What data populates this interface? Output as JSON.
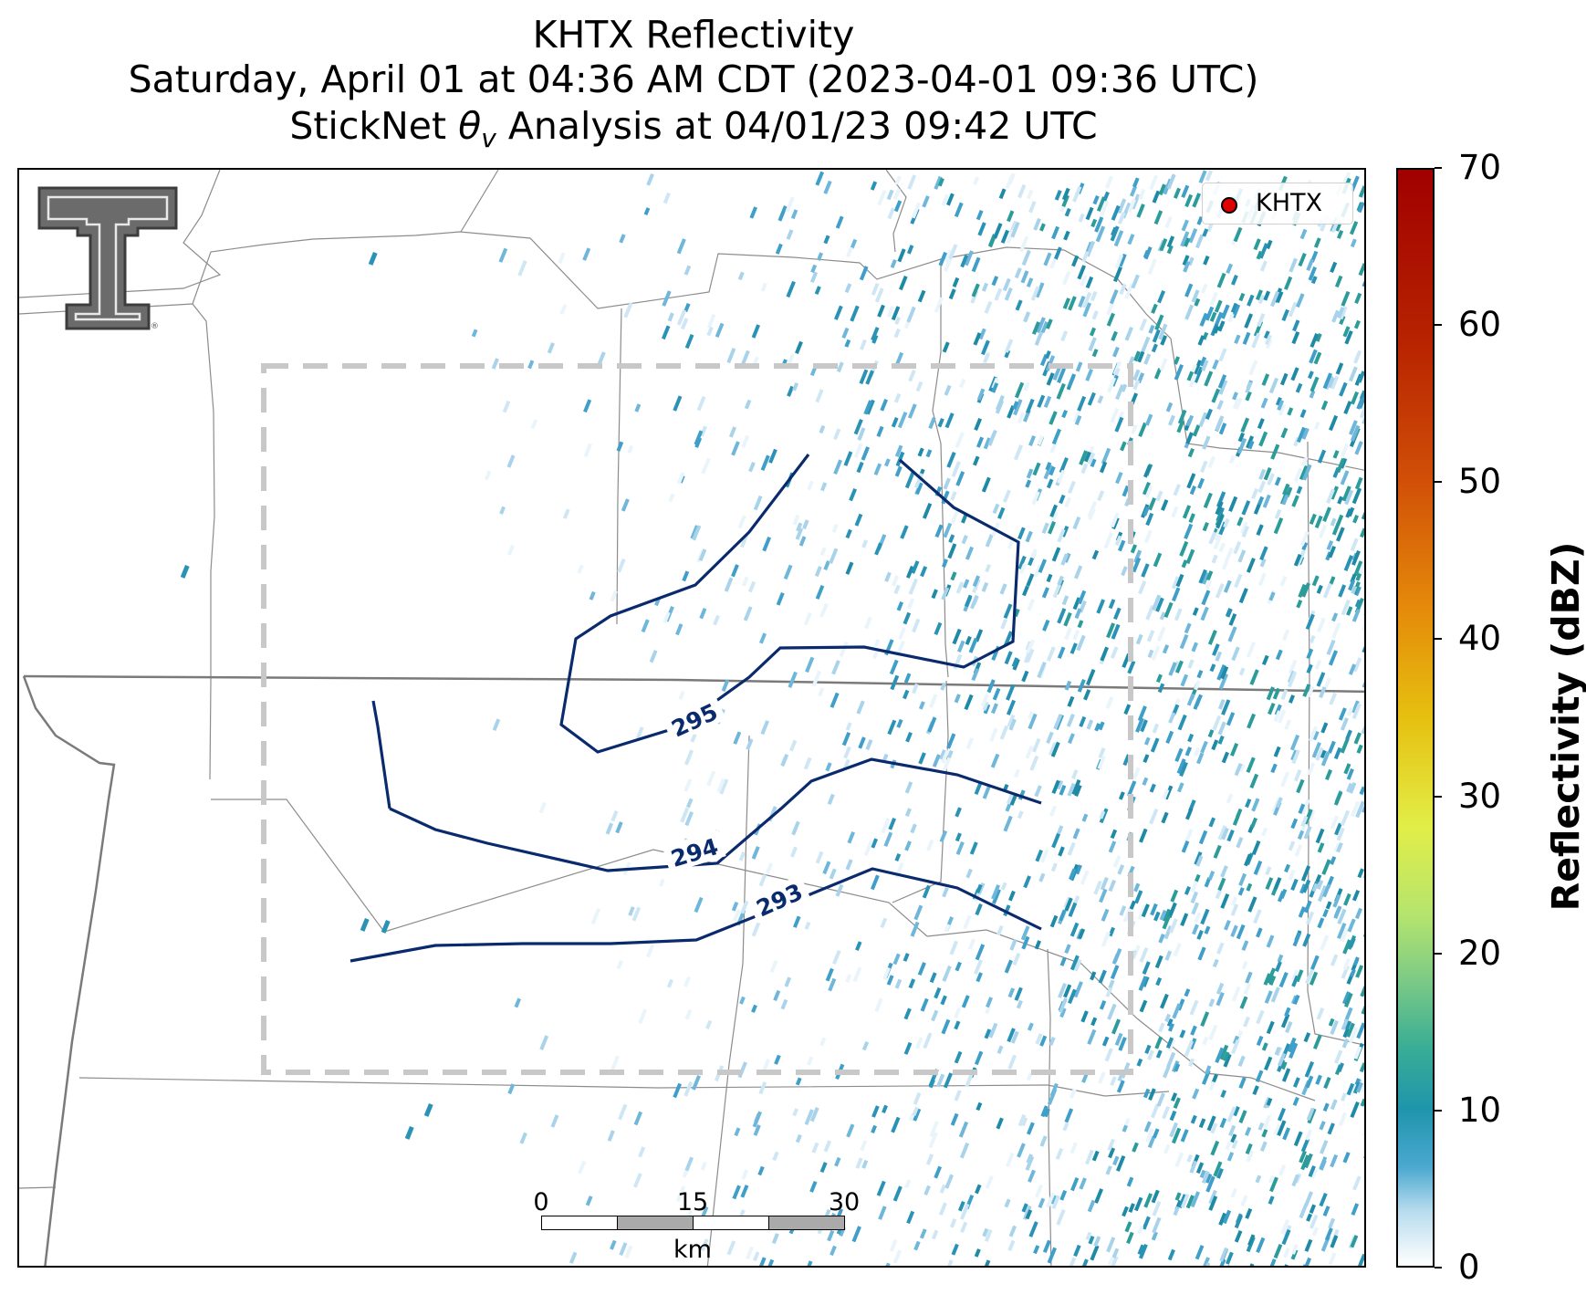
{
  "title": {
    "line1": "KHTX Reflectivity",
    "line2": "Saturday, April 01 at 04:36 AM CDT (2023-04-01 09:36 UTC)",
    "line3_prefix": "StickNet ",
    "line3_symbol": "θ",
    "line3_sub": "v",
    "line3_suffix": " Analysis at 04/01/23 09:42 UTC"
  },
  "legend": {
    "label": "KHTX",
    "marker_color": "#e00000"
  },
  "contours": [
    {
      "value": 295,
      "label": "295",
      "color": "#0a2a6e"
    },
    {
      "value": 294,
      "label": "294",
      "color": "#0a2a6e"
    },
    {
      "value": 293,
      "label": "293",
      "color": "#0a2a6e"
    }
  ],
  "scalebar": {
    "ticks": [
      "0",
      "15",
      "30"
    ],
    "unit": "km"
  },
  "colorbar": {
    "label": "Reflectivity (dBZ)",
    "min": 0,
    "max": 70,
    "ticks": [
      "0",
      "10",
      "20",
      "30",
      "40",
      "50",
      "60",
      "70"
    ]
  },
  "colors": {
    "domain_box": "#c8c8c8",
    "county_lines": "#8c8c8c",
    "state_lines": "#7a7a7a"
  },
  "logo": {
    "name": "texas-tech-double-t-logo"
  }
}
